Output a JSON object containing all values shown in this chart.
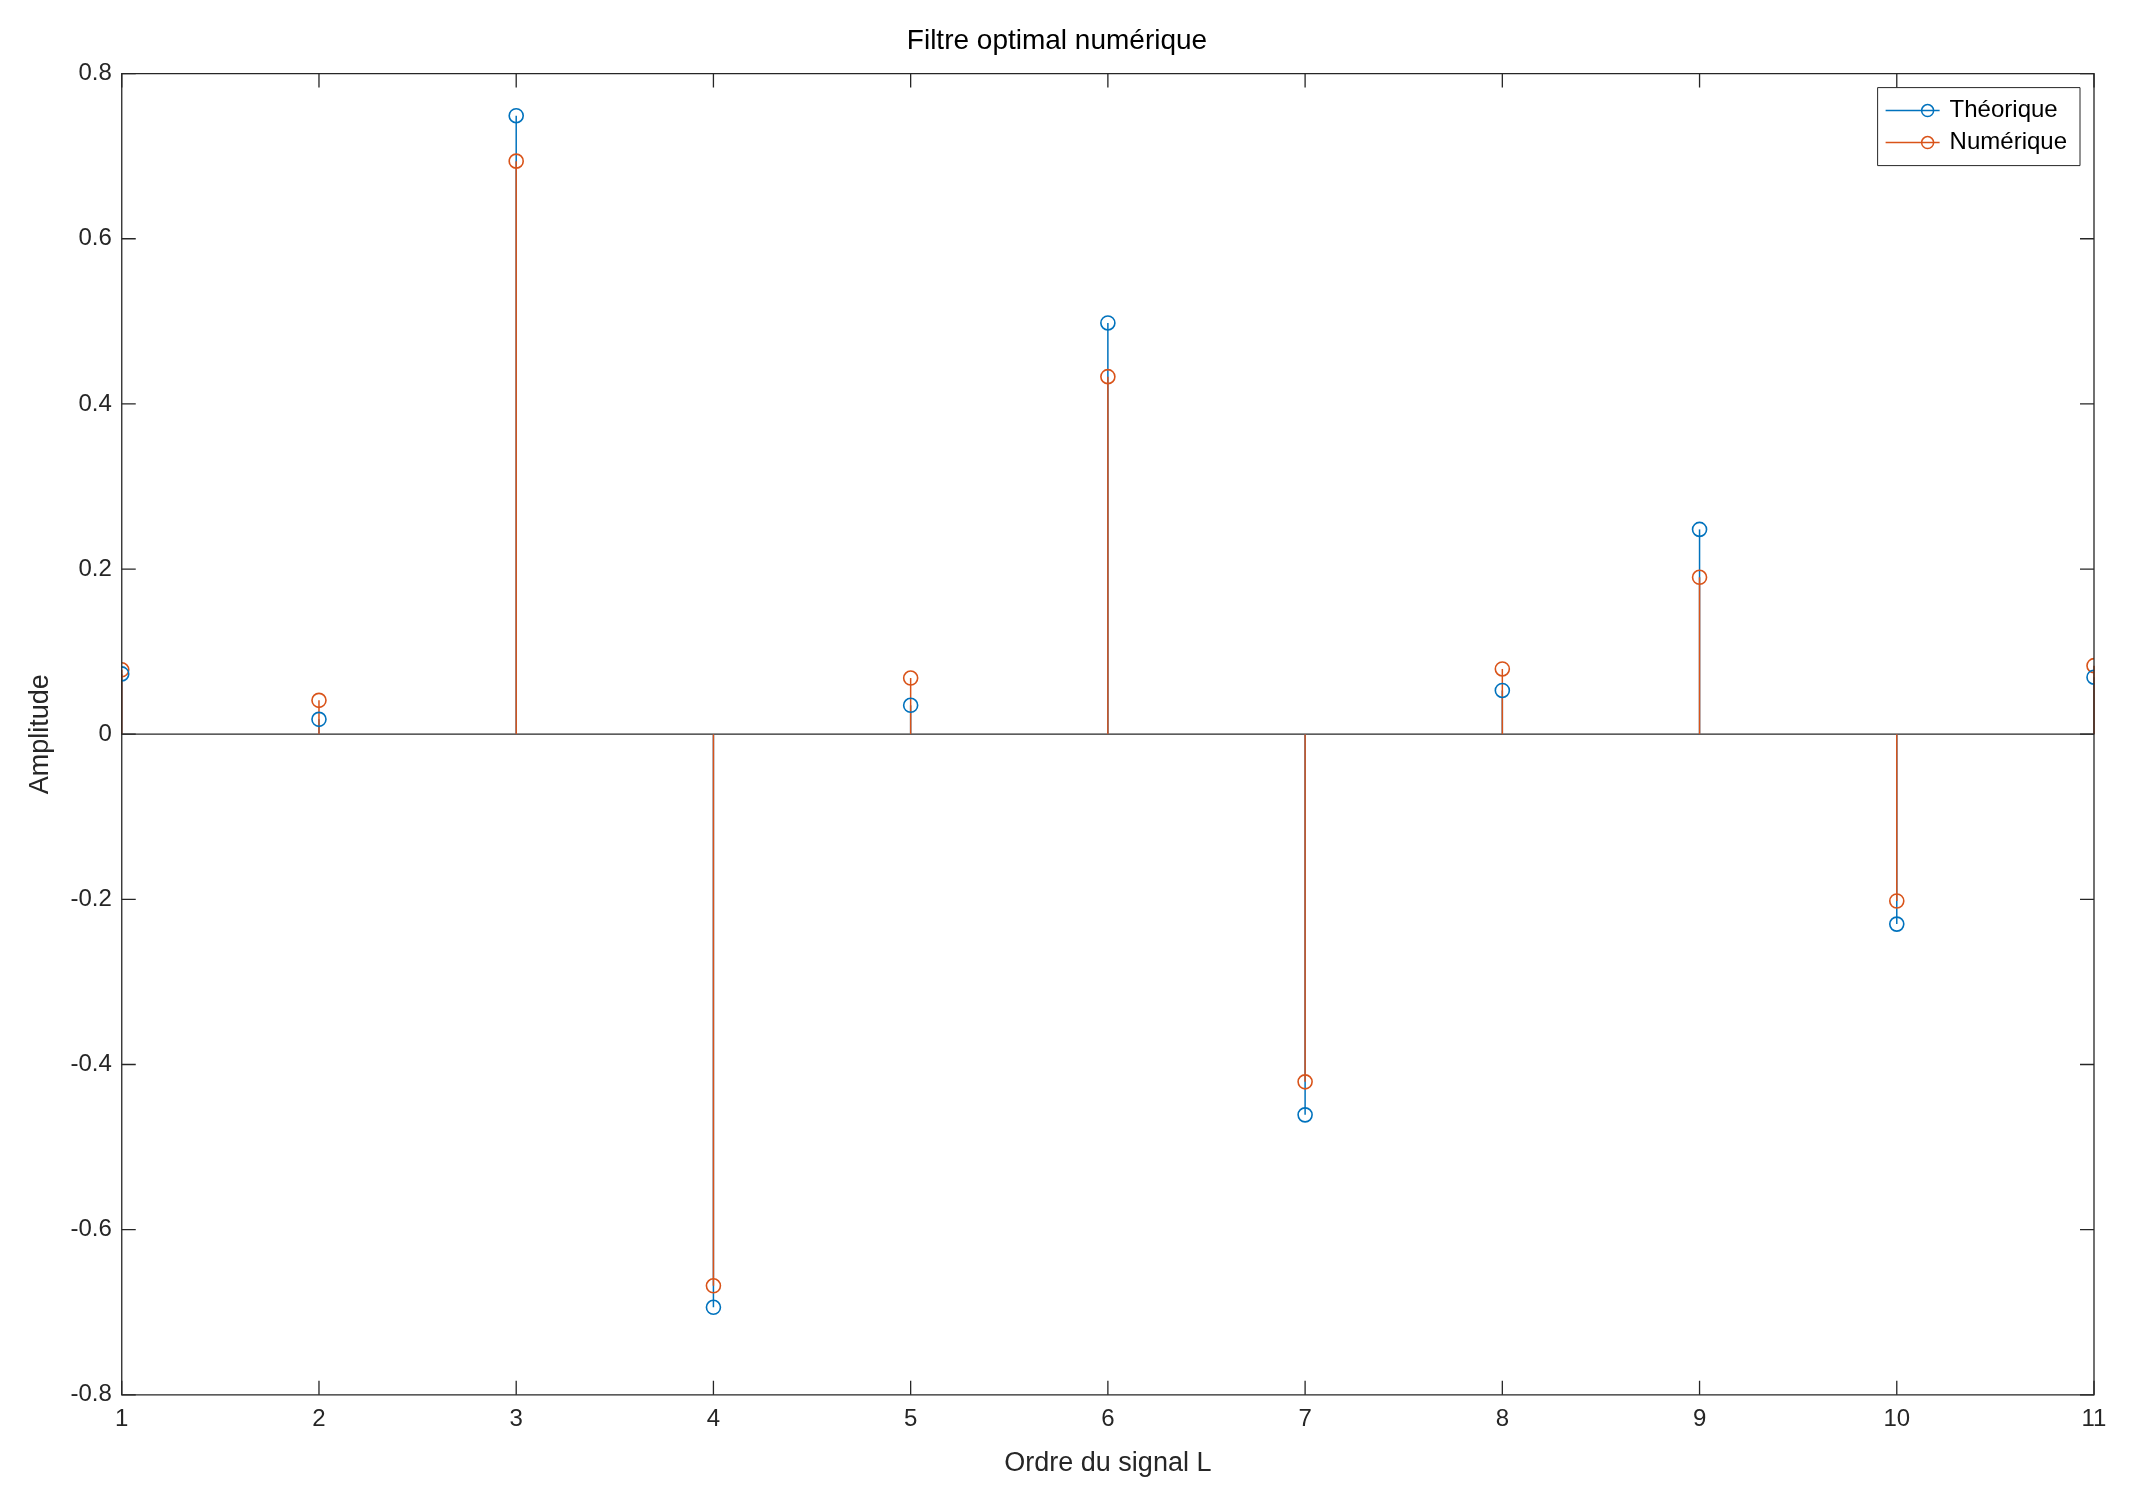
{
  "chart_data": {
    "type": "lollipop",
    "title": "Filtre optimal numérique",
    "xlabel": "Ordre du signal L",
    "ylabel": "Amplitude",
    "x": [
      1,
      2,
      3,
      4,
      5,
      6,
      7,
      8,
      9,
      10,
      11
    ],
    "series": [
      {
        "name": "Théorique",
        "color": "#0072bd",
        "values": [
          0.073,
          0.018,
          0.749,
          -0.694,
          0.035,
          0.498,
          -0.461,
          0.053,
          0.248,
          -0.23,
          0.069
        ]
      },
      {
        "name": "Numérique",
        "color": "#d95319",
        "values": [
          0.078,
          0.041,
          0.694,
          -0.668,
          0.068,
          0.433,
          -0.421,
          0.079,
          0.19,
          -0.202,
          0.083
        ]
      }
    ],
    "xlim": [
      1,
      11
    ],
    "xticks": [
      1,
      2,
      3,
      4,
      5,
      6,
      7,
      8,
      9,
      10,
      11
    ],
    "ylim": [
      -0.8,
      0.8
    ],
    "yticks": [
      -0.8,
      -0.6,
      -0.4,
      -0.2,
      0,
      0.2,
      0.4,
      0.6,
      0.8
    ],
    "ref_lines": [
      {
        "axis": "y",
        "value": 0,
        "color": "#262626"
      }
    ],
    "grid": false,
    "legend": "top right",
    "marker": "circle"
  }
}
